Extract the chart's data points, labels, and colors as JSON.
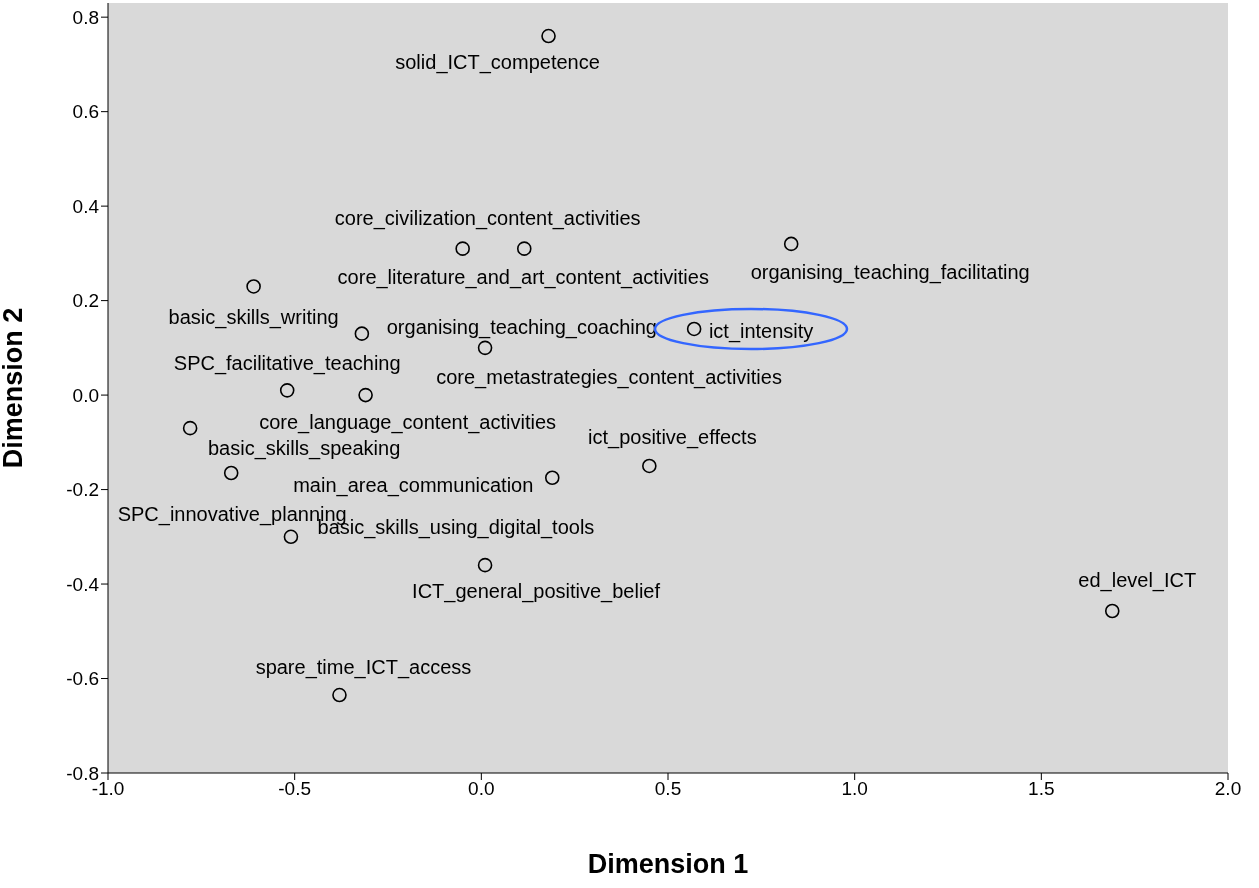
{
  "chart_data": {
    "type": "scatter",
    "xlabel": "Dimension 1",
    "ylabel": "Dimension 2",
    "marker": "circle",
    "color": "#000000",
    "grid": false,
    "x": [
      0.18,
      -0.05,
      0.115,
      0.83,
      -0.61,
      -0.32,
      0.57,
      -0.52,
      0.01,
      -0.31,
      -0.78,
      0.45,
      0.19,
      -0.67,
      -0.51,
      0.01,
      1.69,
      -0.38
    ],
    "values": [
      0.76,
      0.31,
      0.31,
      0.32,
      0.23,
      0.13,
      0.14,
      0.01,
      0.1,
      0.0,
      -0.07,
      -0.15,
      -0.175,
      -0.165,
      -0.3,
      -0.36,
      -0.457,
      -0.635
    ],
    "value_labels": [
      "solid_ICT_competence",
      "core_civilization_content_activities",
      "core_literature_and_art_content_activities",
      "organising_teaching_facilitating",
      "basic_skills_writing",
      "organising_teaching_coaching",
      "ict_intensity",
      "SPC_facilitative_teaching",
      "core_metastrategies_content_activities",
      "core_language_content_activities",
      "basic_skills_speaking",
      "ict_positive_effects",
      "main_area_communication",
      "SPC_innovative_planning",
      "basic_skills_using_digital_tools",
      "ICT_general_positive_belief",
      "ed_level_ICT",
      "spare_time_ICT_access"
    ],
    "xlim": [
      -1,
      2
    ],
    "xticks": [
      {
        "value": -1,
        "label": "-1.0"
      },
      {
        "value": -0.5,
        "label": "-0.5"
      },
      {
        "value": 0,
        "label": "0.0"
      },
      {
        "value": 0.5,
        "label": "0.5"
      },
      {
        "value": 1,
        "label": "1.0"
      },
      {
        "value": 1.5,
        "label": "1.5"
      },
      {
        "value": 2,
        "label": "2.0"
      }
    ],
    "ylim": [
      -0.8,
      0.83
    ],
    "yticks": [
      {
        "value": -0.8,
        "label": "-0.8"
      },
      {
        "value": -0.6,
        "label": "-0.6"
      },
      {
        "value": -0.4,
        "label": "-0.4"
      },
      {
        "value": -0.2,
        "label": "-0.2"
      },
      {
        "value": 0,
        "label": "0.0"
      },
      {
        "value": 0.2,
        "label": "0.2"
      },
      {
        "value": 0.4,
        "label": "0.4"
      },
      {
        "value": 0.6,
        "label": "0.6"
      },
      {
        "value": 0.8,
        "label": "0.8"
      }
    ]
  }
}
